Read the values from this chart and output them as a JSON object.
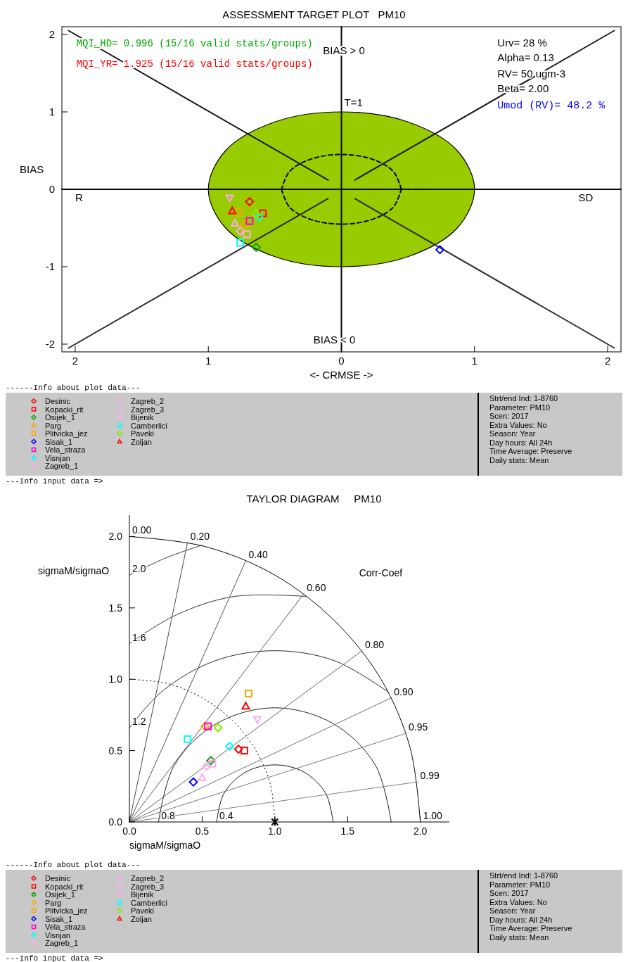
{
  "chart_data": [
    {
      "type": "scatter",
      "title": "ASSESSMENT TARGET PLOT   PM10",
      "xlabel": "<- CRMSE ->",
      "ylabel": "BIAS",
      "xlim": [
        -2.1,
        2.1
      ],
      "ylim": [
        -2.1,
        2.1
      ],
      "xticks": [
        {
          "value": -2,
          "label": "2"
        },
        {
          "value": -1,
          "label": "1"
        },
        0,
        1,
        2
      ],
      "yticks": [
        -2,
        -1,
        0,
        1,
        2
      ],
      "grid": false,
      "legend": "bottom",
      "series": [
        {
          "type": "line",
          "color": "#050505",
          "x": [
            0,
            0
          ],
          "values": [
            -2.1,
            2.1
          ]
        },
        {
          "type": "line",
          "color": "#060606",
          "x": [
            -2.1,
            2.1
          ],
          "values": [
            0,
            0
          ]
        },
        {
          "type": "area",
          "color": "#99cc00",
          "x": [
            1,
            0.87,
            0.5,
            0,
            -0.5,
            -0.87,
            -1,
            -0.87,
            -0.5,
            0,
            0.5,
            0.87
          ],
          "values": [
            0,
            0.5,
            0.87,
            1,
            0.87,
            0.5,
            0,
            -0.5,
            -0.87,
            -1,
            -0.87,
            -0.5
          ]
        },
        {
          "type": "line",
          "color": "#0a0a0a",
          "line_style": "dashed",
          "x": [
            0.45,
            0.39,
            0.23,
            0,
            -0.23,
            -0.39,
            -0.45
          ],
          "values": [
            0,
            0.23,
            0.39,
            0.45,
            0.39,
            0.23,
            0
          ]
        },
        {
          "type": "line",
          "color": "#0b0b0b",
          "line_style": "dashed",
          "x": [
            -0.45,
            -0.39,
            -0.23,
            0,
            0.23,
            0.39,
            0.45
          ],
          "values": [
            0,
            -0.23,
            -0.39,
            -0.45,
            -0.39,
            -0.23,
            0
          ]
        },
        {
          "type": "line",
          "color": "#141414",
          "x": [
            -2.05,
            -0.1
          ],
          "values": [
            2.05,
            0.12
          ]
        },
        {
          "type": "line",
          "color": "#1e1e1e",
          "x": [
            0.1,
            2.05
          ],
          "values": [
            0.12,
            2.05
          ]
        },
        {
          "type": "line",
          "color": "#282828",
          "x": [
            -2.05,
            -0.1
          ],
          "values": [
            -2.05,
            -0.12
          ]
        },
        {
          "type": "line",
          "color": "#323232",
          "x": [
            0.1,
            2.05
          ],
          "values": [
            -0.12,
            -2.05
          ]
        },
        {
          "name": "Desinic",
          "color": "#ff0000",
          "marker": "diamond",
          "x": [
            -0.69
          ],
          "values": [
            -0.16
          ]
        },
        {
          "name": "Kopacki_rit",
          "color": "#ff0000",
          "marker": "square",
          "x": [
            -0.59
          ],
          "values": [
            -0.31
          ]
        },
        {
          "name": "Osijek_1",
          "color": "#00a000",
          "marker": "diamond",
          "x": [
            -0.64
          ],
          "values": [
            -0.75
          ]
        },
        {
          "name": "Parg",
          "color": "#ffa500",
          "marker": "diamond",
          "x": [
            -0.73
          ],
          "values": [
            -0.46
          ]
        },
        {
          "name": "Plitvicka_jez",
          "color": "#ffa500",
          "marker": "square",
          "x": [
            -0.77
          ],
          "values": [
            -0.3
          ]
        },
        {
          "name": "Sisak_1",
          "color": "#0000ff",
          "marker": "diamond",
          "x": [
            0.74
          ],
          "values": [
            -0.78
          ]
        },
        {
          "name": "Vela_straza",
          "color": "#ff00cc",
          "marker": "square",
          "x": [
            -0.69
          ],
          "values": [
            -0.41
          ]
        },
        {
          "name": "Visnjan",
          "color": "#00ffff",
          "marker": "diamond",
          "x": [
            -0.62
          ],
          "values": [
            -0.36
          ]
        },
        {
          "name": "Zagreb_1",
          "color": "#ffaaee",
          "marker": "diamond",
          "x": [
            -0.76
          ],
          "values": [
            -0.54
          ]
        },
        {
          "name": "Zagreb_2",
          "color": "#ffaaee",
          "marker": "square",
          "x": [
            -0.71
          ],
          "values": [
            -0.58
          ]
        },
        {
          "name": "Zagreb_3",
          "color": "#ffaaee",
          "marker": "triangle",
          "x": [
            -0.8
          ],
          "values": [
            -0.44
          ]
        },
        {
          "name": "Bijenik",
          "color": "#ffaaee",
          "marker": "triangle-down",
          "x": [
            -0.84
          ],
          "values": [
            -0.11
          ]
        },
        {
          "name": "Camberlici",
          "color": "#00ffff",
          "marker": "square",
          "x": [
            -0.76
          ],
          "values": [
            -0.69
          ]
        },
        {
          "name": "Paveki",
          "color": "#88ee00",
          "marker": "diamond",
          "x": [
            -0.64
          ],
          "values": [
            -0.32
          ]
        },
        {
          "name": "Zoljan",
          "color": "#ff0000",
          "marker": "triangle",
          "x": [
            -0.82
          ],
          "values": [
            -0.28
          ]
        }
      ],
      "annotations": [
        "MQI_HD= 0.996 (15/16 valid stats/groups)",
        "MQI_YR= 1.925 (15/16 valid stats/groups)",
        "BIAS > 0",
        "Urv= 28 %",
        "Alpha= 0.13",
        "RV= 50 ugm-3",
        "Beta= 2.00",
        "Umod (RV)= 48.2 %",
        "R",
        "SD",
        "BIAS < 0",
        {
          "text": "T=1",
          "x": 0,
          "y": 1
        },
        "------Info about plot data---",
        "Strt/end Ind: 1-8760",
        "Parameter: PM10",
        "Scen: 2017",
        "Extra Values: No",
        "Season: Year",
        "Day hours: All 24h",
        "Time Average: Preserve",
        "Daily stats: Mean",
        "---Info input data =>"
      ]
    },
    {
      "type": "scatter",
      "title": "TAYLOR DIAGRAM     PM10",
      "xlabel": "sigmaM/sigmaO",
      "ylabel": "sigmaM/sigmaO",
      "xlim": [
        0,
        2.2
      ],
      "ylim": [
        0,
        2.15
      ],
      "xticks": [
        {
          "value": 0,
          "label": "0.0"
        },
        0.5,
        {
          "value": 1,
          "label": "1.0"
        },
        1.5,
        {
          "value": 2,
          "label": "2.0"
        }
      ],
      "yticks": [
        {
          "value": 0,
          "label": "0.0"
        },
        0.5,
        {
          "value": 1,
          "label": "1.0"
        },
        1.5,
        {
          "value": 2,
          "label": "2.0"
        }
      ],
      "grid": false,
      "legend": "bottom",
      "series": [
        {
          "type": "line",
          "color": "#000000",
          "x": [
            2,
            1.93,
            1.73,
            1.41,
            1,
            0.52,
            0
          ],
          "values": [
            0,
            0.52,
            1,
            1.41,
            1.73,
            1.93,
            2
          ]
        },
        {
          "type": "line",
          "color": "#0a0a0a",
          "line_style": "dotted",
          "x": [
            1,
            0.97,
            0.87,
            0.71,
            0.5,
            0.26,
            0
          ],
          "values": [
            0,
            0.26,
            0.5,
            0.71,
            0.87,
            0.97,
            1
          ]
        },
        {
          "type": "line",
          "color": "#141414",
          "x": [
            1.4,
            1.35,
            1.2,
            1,
            0.8,
            0.65,
            0.6
          ],
          "values": [
            0,
            0.2,
            0.35,
            0.4,
            0.35,
            0.2,
            0
          ]
        },
        {
          "type": "line",
          "color": "#1e1e1e",
          "x": [
            1.8,
            1.69,
            1.4,
            1,
            0.6,
            0.31,
            0.2
          ],
          "values": [
            0,
            0.4,
            0.69,
            0.8,
            0.69,
            0.4,
            0
          ]
        },
        {
          "type": "line",
          "color": "#282828",
          "x": [
            1.78,
            1.41,
            1,
            0.59,
            0.23,
            0
          ],
          "values": [
            0.91,
            1.13,
            1.2,
            1.13,
            0.92,
            0.66
          ]
        },
        {
          "type": "line",
          "color": "#323232",
          "x": [
            1.22,
            0.72,
            0.32,
            0
          ],
          "values": [
            1.58,
            1.58,
            1.45,
            1.25
          ]
        },
        {
          "type": "line",
          "color": "#3c3c3c",
          "x": [
            0.5,
            0.25,
            0
          ],
          "values": [
            1.94,
            1.85,
            1.73
          ]
        },
        {
          "type": "line",
          "color": "#464646",
          "x": [
            0,
            0.4
          ],
          "values": [
            0,
            1.96
          ]
        },
        {
          "type": "line",
          "color": "#505050",
          "x": [
            0,
            0.8
          ],
          "values": [
            0,
            1.83
          ]
        },
        {
          "type": "line",
          "color": "#5a5a5a",
          "x": [
            0,
            1.2
          ],
          "values": [
            0,
            1.6
          ]
        },
        {
          "type": "line",
          "color": "#646464",
          "x": [
            0,
            1.6
          ],
          "values": [
            0,
            1.2
          ]
        },
        {
          "type": "line",
          "color": "#6e6e6e",
          "x": [
            0,
            1.8
          ],
          "values": [
            0,
            0.87
          ]
        },
        {
          "type": "line",
          "color": "#787878",
          "x": [
            0,
            1.9
          ],
          "values": [
            0,
            0.62
          ]
        },
        {
          "type": "line",
          "color": "#828282",
          "x": [
            0,
            1.98
          ],
          "values": [
            0,
            0.28
          ]
        },
        {
          "color": "#000000",
          "marker": "cross",
          "x": [
            1
          ],
          "values": [
            0
          ]
        },
        {
          "name": "Desinic",
          "color": "#ff0000",
          "marker": "diamond",
          "x": [
            0.75
          ],
          "values": [
            0.51
          ]
        },
        {
          "name": "Kopacki_rit",
          "color": "#ff0000",
          "marker": "square",
          "x": [
            0.79
          ],
          "values": [
            0.5
          ]
        },
        {
          "name": "Osijek_1",
          "color": "#00a000",
          "marker": "diamond",
          "x": [
            0.56
          ],
          "values": [
            0.43
          ]
        },
        {
          "name": "Parg",
          "color": "#ffa500",
          "marker": "diamond",
          "x": [
            0.52
          ],
          "values": [
            0.67
          ]
        },
        {
          "name": "Plitvicka_jez",
          "color": "#ffa500",
          "marker": "square",
          "x": [
            0.82
          ],
          "values": [
            0.9
          ]
        },
        {
          "name": "Sisak_1",
          "color": "#0000ff",
          "marker": "diamond",
          "x": [
            0.44
          ],
          "values": [
            0.28
          ]
        },
        {
          "name": "Vela_straza",
          "color": "#ff00cc",
          "marker": "square",
          "x": [
            0.54
          ],
          "values": [
            0.67
          ]
        },
        {
          "name": "Visnjan",
          "color": "#00ffff",
          "marker": "diamond",
          "x": [
            0.69
          ],
          "values": [
            0.53
          ]
        },
        {
          "name": "Zagreb_1",
          "color": "#ffaaee",
          "marker": "diamond",
          "x": [
            0.53
          ],
          "values": [
            0.39
          ]
        },
        {
          "name": "Zagreb_2",
          "color": "#ffaaee",
          "marker": "square",
          "x": [
            0.57
          ],
          "values": [
            0.41
          ]
        },
        {
          "name": "Zagreb_3",
          "color": "#ffaaee",
          "marker": "triangle",
          "x": [
            0.5
          ],
          "values": [
            0.31
          ]
        },
        {
          "name": "Bijenik",
          "color": "#ffaaee",
          "marker": "triangle-down",
          "x": [
            0.88
          ],
          "values": [
            0.72
          ]
        },
        {
          "name": "Camberlici",
          "color": "#00ffff",
          "marker": "square",
          "x": [
            0.4
          ],
          "values": [
            0.58
          ]
        },
        {
          "name": "Paveki",
          "color": "#88ee00",
          "marker": "diamond",
          "x": [
            0.61
          ],
          "values": [
            0.66
          ]
        },
        {
          "name": "Zoljan",
          "color": "#ff0000",
          "marker": "triangle",
          "x": [
            0.8
          ],
          "values": [
            0.81
          ]
        }
      ],
      "annotations": [
        "Corr-Coef",
        {
          "text": "0.00",
          "x": 0,
          "y": 2
        },
        {
          "text": "0.20",
          "x": 0.4,
          "y": 1.96
        },
        {
          "text": "0.40",
          "x": 0.8,
          "y": 1.83
        },
        {
          "text": "0.60",
          "x": 1.2,
          "y": 1.6
        },
        {
          "text": "0.80",
          "x": 1.6,
          "y": 1.2
        },
        {
          "text": "0.90",
          "x": 1.8,
          "y": 0.87
        },
        {
          "text": "0.95",
          "x": 1.9,
          "y": 0.62
        },
        {
          "text": "0.99",
          "x": 1.98,
          "y": 0.28
        },
        {
          "text": "1.00",
          "x": 2,
          "y": 0
        },
        {
          "text": "2.0",
          "x": 0,
          "y": 1.73
        },
        {
          "text": "1.6",
          "x": 0,
          "y": 1.25
        },
        {
          "text": "1.2",
          "x": 0,
          "y": 0.66
        },
        {
          "text": "0.8",
          "x": 0.2,
          "y": 0
        },
        {
          "text": "0.4",
          "x": 0.6,
          "y": 0
        },
        "------Info about plot data---",
        "Strt/end Ind: 1-8760",
        "Parameter: PM10",
        "Scen: 2017",
        "Extra Values: No",
        "Season: Year",
        "Day hours: All 24h",
        "Time Average: Preserve",
        "Daily stats: Mean",
        "---Info input data =>"
      ]
    }
  ]
}
